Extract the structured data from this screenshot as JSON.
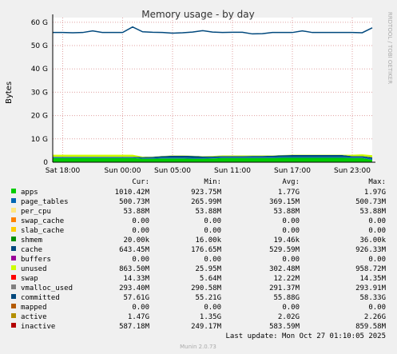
{
  "chart_data": {
    "type": "line",
    "title": "Memory usage - by day",
    "y_label": "Bytes",
    "side_text": "RRDTOOL / TOBI OETIKER",
    "footer": "Last update: Mon Oct 27 01:10:05 2025",
    "version": "Munin 2.0.73",
    "columns": [
      "Cur:",
      "Min:",
      "Avg:",
      "Max:"
    ],
    "grid": true,
    "ylim": [
      0,
      62
    ],
    "yticks": [
      0,
      {
        "value": 10,
        "label": "10 G"
      },
      {
        "value": 20,
        "label": "20 G"
      },
      {
        "value": 30,
        "label": "30 G"
      },
      {
        "value": 40,
        "label": "40 G"
      },
      {
        "value": 50,
        "label": "50 G"
      },
      {
        "value": 60,
        "label": "60 G"
      }
    ],
    "categories": [
      null,
      "Sat 18:00",
      null,
      null,
      null,
      null,
      null,
      "Sun 00:00",
      null,
      null,
      null,
      null,
      "Sun 05:00",
      null,
      null,
      null,
      null,
      null,
      "Sun 11:00",
      null,
      null,
      null,
      null,
      null,
      "Sun 17:00",
      null,
      null,
      null,
      null,
      null,
      "Sun 23:00",
      null,
      null
    ],
    "series": [
      {
        "name": "apps",
        "color": "#00cc00",
        "stacked": true,
        "cur": "1010.42M",
        "min": "923.75M",
        "avg": "1.77G",
        "max": "1.97G",
        "values": [
          1.8,
          1.8,
          1.8,
          1.8,
          1.8,
          1.8,
          1.8,
          1.8,
          1.8,
          1.5,
          1.5,
          1.6,
          1.6,
          1.6,
          1.5,
          1.5,
          1.6,
          1.8,
          1.8,
          1.8,
          1.8,
          1.8,
          1.8,
          1.9,
          1.9,
          1.9,
          1.9,
          1.9,
          1.9,
          1.9,
          1.8,
          1.8,
          1.0
        ]
      },
      {
        "name": "page_tables",
        "color": "#0066b3",
        "stacked": true,
        "cur": "500.73M",
        "min": "265.99M",
        "avg": "369.15M",
        "max": "500.73M",
        "values": [
          0.3,
          0.3,
          0.3,
          0.3,
          0.3,
          0.3,
          0.3,
          0.3,
          0.3,
          0.3,
          0.3,
          0.4,
          0.4,
          0.4,
          0.4,
          0.4,
          0.4,
          0.4,
          0.4,
          0.4,
          0.4,
          0.4,
          0.4,
          0.4,
          0.4,
          0.4,
          0.4,
          0.4,
          0.4,
          0.4,
          0.4,
          0.4,
          0.5
        ]
      },
      {
        "name": "per_cpu",
        "color": "#ffe680",
        "cur": "53.88M",
        "min": "53.88M",
        "avg": "53.88M",
        "max": "53.88M"
      },
      {
        "name": "swap_cache",
        "color": "#ff8000",
        "cur": "0.00",
        "min": "0.00",
        "avg": "0.00",
        "max": "0.00"
      },
      {
        "name": "slab_cache",
        "color": "#ffcc00",
        "cur": "0.00",
        "min": "0.00",
        "avg": "0.00",
        "max": "0.00"
      },
      {
        "name": "shmem",
        "color": "#008f00",
        "cur": "20.00k",
        "min": "16.00k",
        "avg": "19.46k",
        "max": "36.00k"
      },
      {
        "name": "cache",
        "color": "#00487d",
        "stacked": true,
        "cur": "643.45M",
        "min": "176.65M",
        "avg": "529.59M",
        "max": "926.33M",
        "values": [
          0.2,
          0.2,
          0.2,
          0.2,
          0.2,
          0.2,
          0.2,
          0.2,
          0.2,
          0.4,
          0.5,
          0.6,
          0.8,
          0.8,
          0.8,
          0.6,
          0.5,
          0.4,
          0.4,
          0.4,
          0.5,
          0.5,
          0.6,
          0.7,
          0.8,
          0.8,
          0.8,
          0.8,
          0.8,
          0.8,
          0.4,
          0.4,
          0.6
        ]
      },
      {
        "name": "buffers",
        "color": "#990099",
        "cur": "0.00",
        "min": "0.00",
        "avg": "0.00",
        "max": "0.00"
      },
      {
        "name": "unused",
        "color": "#ccff00",
        "stacked": true,
        "cur": "863.50M",
        "min": "25.95M",
        "avg": "302.48M",
        "max": "958.72M",
        "values": [
          0.9,
          0.9,
          0.9,
          0.9,
          0.9,
          0.9,
          0.9,
          0.9,
          0.9,
          0.2,
          0.1,
          0.1,
          0.1,
          0.1,
          0.1,
          0.1,
          0.2,
          0.3,
          0.3,
          0.3,
          0.2,
          0.2,
          0.1,
          0.1,
          0.1,
          0.1,
          0.1,
          0.1,
          0.1,
          0.1,
          0.6,
          0.8,
          0.9
        ]
      },
      {
        "name": "swap",
        "color": "#ff0000",
        "cur": "14.33M",
        "min": "5.64M",
        "avg": "12.22M",
        "max": "14.35M"
      },
      {
        "name": "vmalloc_used",
        "color": "#808080",
        "cur": "293.40M",
        "min": "290.58M",
        "avg": "291.37M",
        "max": "293.91M"
      },
      {
        "name": "committed",
        "color": "#00487d",
        "cur": "57.61G",
        "min": "55.21G",
        "avg": "55.88G",
        "max": "58.33G",
        "values": [
          55.6,
          55.6,
          55.5,
          55.6,
          56.3,
          55.6,
          55.6,
          55.6,
          58.0,
          55.9,
          55.7,
          55.6,
          55.3,
          55.5,
          55.8,
          56.4,
          55.8,
          55.6,
          55.7,
          55.7,
          55.0,
          55.1,
          55.6,
          55.6,
          55.6,
          56.3,
          55.6,
          55.6,
          55.6,
          55.6,
          55.6,
          55.5,
          57.6
        ]
      },
      {
        "name": "mapped",
        "color": "#b35a00",
        "cur": "0.00",
        "min": "0.00",
        "avg": "0.00",
        "max": "0.00"
      },
      {
        "name": "active",
        "color": "#b38f00",
        "cur": "1.47G",
        "min": "1.35G",
        "avg": "2.02G",
        "max": "2.26G"
      },
      {
        "name": "inactive",
        "color": "#b30000",
        "cur": "587.18M",
        "min": "249.17M",
        "avg": "583.59M",
        "max": "859.58M"
      }
    ]
  }
}
